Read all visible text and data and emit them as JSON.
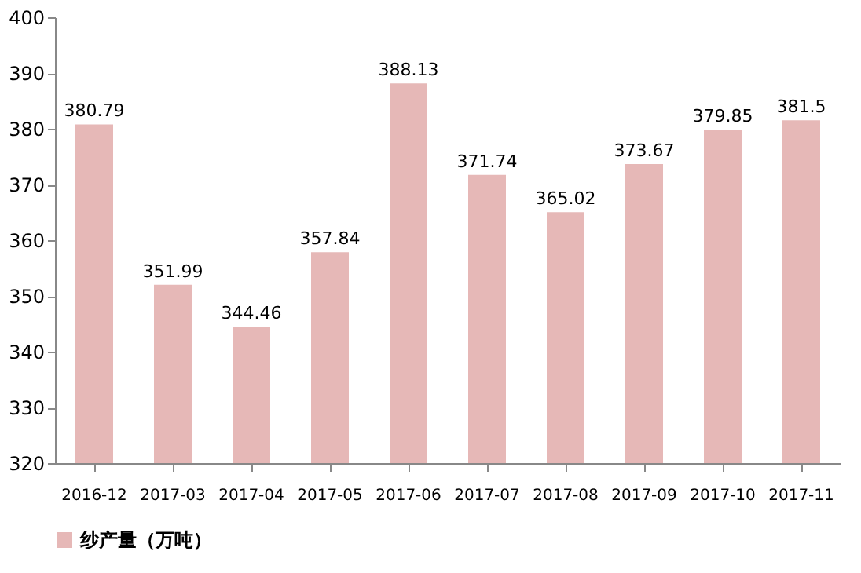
{
  "chart_data": {
    "type": "bar",
    "categories": [
      "2016-12",
      "2017-03",
      "2017-04",
      "2017-05",
      "2017-06",
      "2017-07",
      "2017-08",
      "2017-09",
      "2017-10",
      "2017-11"
    ],
    "series": [
      {
        "name": "纱产量（万吨）",
        "color": "#e6b8b7",
        "values": [
          380.79,
          351.99,
          344.46,
          357.84,
          388.13,
          371.74,
          365.02,
          373.67,
          379.85,
          381.5
        ]
      }
    ],
    "ylim": [
      320,
      400
    ],
    "yticks": [
      320,
      330,
      340,
      350,
      360,
      370,
      380,
      390,
      400
    ],
    "grid": false,
    "legend": "bottom",
    "data_labels": true
  }
}
